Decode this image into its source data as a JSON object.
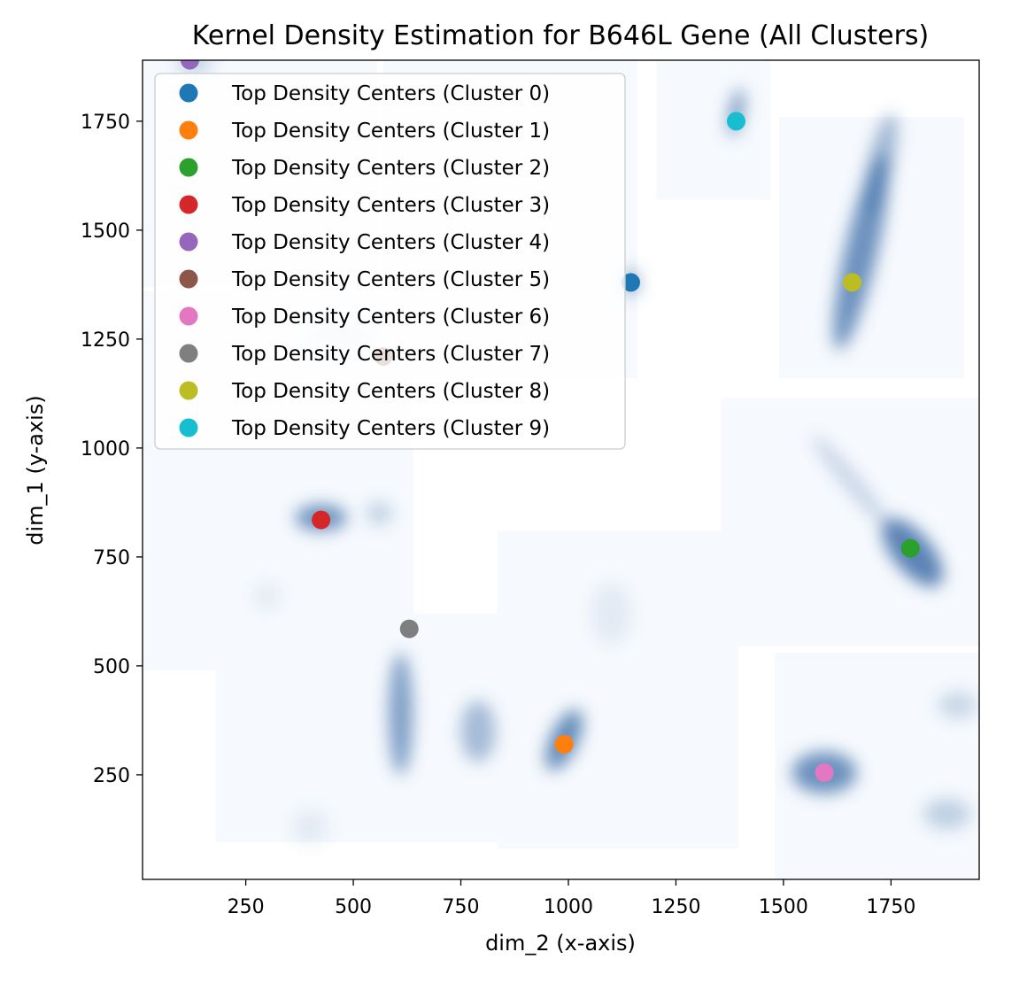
{
  "chart_data": {
    "type": "scatter",
    "title": "Kernel Density Estimation for B646L Gene (All Clusters)",
    "xlabel": "dim_2 (x-axis)",
    "ylabel": "dim_1 (y-axis)",
    "xlim": [
      10,
      1955
    ],
    "ylim": [
      10,
      1890
    ],
    "xticks": [
      250,
      500,
      750,
      1000,
      1250,
      1500,
      1750
    ],
    "yticks": [
      250,
      500,
      750,
      1000,
      1250,
      1500,
      1750
    ],
    "grid": false,
    "legend_position": "upper-left",
    "series": [
      {
        "name": "Top Density Centers (Cluster 0)",
        "color": "#1f77b4",
        "x": [
          1145
        ],
        "y": [
          1380
        ]
      },
      {
        "name": "Top Density Centers (Cluster 1)",
        "color": "#ff7f0e",
        "x": [
          990
        ],
        "y": [
          320
        ]
      },
      {
        "name": "Top Density Centers (Cluster 2)",
        "color": "#2ca02c",
        "x": [
          1795
        ],
        "y": [
          770
        ]
      },
      {
        "name": "Top Density Centers (Cluster 3)",
        "color": "#d62728",
        "x": [
          425
        ],
        "y": [
          835
        ]
      },
      {
        "name": "Top Density Centers (Cluster 4)",
        "color": "#9467bd",
        "x": [
          120
        ],
        "y": [
          1890
        ]
      },
      {
        "name": "Top Density Centers (Cluster 5)",
        "color": "#8c564b",
        "x": [
          570
        ],
        "y": [
          1210
        ]
      },
      {
        "name": "Top Density Centers (Cluster 6)",
        "color": "#e377c2",
        "x": [
          1595
        ],
        "y": [
          255
        ]
      },
      {
        "name": "Top Density Centers (Cluster 7)",
        "color": "#7f7f7f",
        "x": [
          630
        ],
        "y": [
          585
        ]
      },
      {
        "name": "Top Density Centers (Cluster 8)",
        "color": "#bcbd22",
        "x": [
          1660
        ],
        "y": [
          1380
        ]
      },
      {
        "name": "Top Density Centers (Cluster 9)",
        "color": "#17becf",
        "x": [
          1390
        ],
        "y": [
          1750
        ]
      }
    ],
    "density_color": "#3f6fa8",
    "density_panels": [
      {
        "cluster": 0,
        "x": [
          570,
          1160
        ],
        "y": [
          1160,
          1890
        ]
      },
      {
        "cluster": 1,
        "x": [
          835,
          1395
        ],
        "y": [
          80,
          810
        ]
      },
      {
        "cluster": 2,
        "x": [
          1355,
          1955
        ],
        "y": [
          545,
          1115
        ]
      },
      {
        "cluster": 3,
        "x": [
          10,
          640
        ],
        "y": [
          490,
          1360
        ]
      },
      {
        "cluster": 4,
        "x": [
          10,
          555
        ],
        "y": [
          1370,
          1890
        ]
      },
      {
        "cluster": 6,
        "x": [
          1480,
          1955
        ],
        "y": [
          10,
          530
        ]
      },
      {
        "cluster": 7,
        "x": [
          180,
          835
        ],
        "y": [
          95,
          620
        ]
      },
      {
        "cluster": 8,
        "x": [
          1490,
          1920
        ],
        "y": [
          1160,
          1760
        ]
      },
      {
        "cluster": 9,
        "x": [
          1205,
          1470
        ],
        "y": [
          1570,
          1890
        ]
      }
    ],
    "density_blobs": [
      {
        "x": 1680,
        "y": 1450,
        "sx": 38,
        "sy": 230,
        "rot": 13,
        "a": 0.75
      },
      {
        "x": 1725,
        "y": 1650,
        "sx": 28,
        "sy": 120,
        "rot": 13,
        "a": 0.5
      },
      {
        "x": 1800,
        "y": 760,
        "sx": 45,
        "sy": 95,
        "rot": -40,
        "a": 0.85
      },
      {
        "x": 1660,
        "y": 920,
        "sx": 18,
        "sy": 140,
        "rot": -40,
        "a": 0.28
      },
      {
        "x": 1595,
        "y": 255,
        "sx": 75,
        "sy": 48,
        "rot": 0,
        "a": 0.75
      },
      {
        "x": 1880,
        "y": 160,
        "sx": 55,
        "sy": 35,
        "rot": 0,
        "a": 0.3
      },
      {
        "x": 1905,
        "y": 410,
        "sx": 45,
        "sy": 30,
        "rot": 0,
        "a": 0.25
      },
      {
        "x": 990,
        "y": 330,
        "sx": 32,
        "sy": 75,
        "rot": 25,
        "a": 0.8
      },
      {
        "x": 1100,
        "y": 620,
        "sx": 45,
        "sy": 70,
        "rot": 0,
        "a": 0.1
      },
      {
        "x": 610,
        "y": 390,
        "sx": 28,
        "sy": 140,
        "rot": 0,
        "a": 0.65
      },
      {
        "x": 790,
        "y": 350,
        "sx": 40,
        "sy": 70,
        "rot": 0,
        "a": 0.45
      },
      {
        "x": 400,
        "y": 130,
        "sx": 40,
        "sy": 40,
        "rot": 0,
        "a": 0.1
      },
      {
        "x": 425,
        "y": 840,
        "sx": 60,
        "sy": 30,
        "rot": 0,
        "a": 0.75
      },
      {
        "x": 560,
        "y": 850,
        "sx": 30,
        "sy": 25,
        "rot": 0,
        "a": 0.3
      },
      {
        "x": 300,
        "y": 660,
        "sx": 30,
        "sy": 30,
        "rot": 0,
        "a": 0.1
      },
      {
        "x": 1390,
        "y": 1770,
        "sx": 16,
        "sy": 55,
        "rot": 10,
        "a": 0.7
      },
      {
        "x": 1145,
        "y": 1380,
        "sx": 20,
        "sy": 30,
        "rot": 0,
        "a": 0.55
      },
      {
        "x": 470,
        "y": 1260,
        "sx": 80,
        "sy": 40,
        "rot": 0,
        "a": 0.12
      },
      {
        "x": 130,
        "y": 1885,
        "sx": 40,
        "sy": 25,
        "rot": 0,
        "a": 0.3
      }
    ]
  }
}
